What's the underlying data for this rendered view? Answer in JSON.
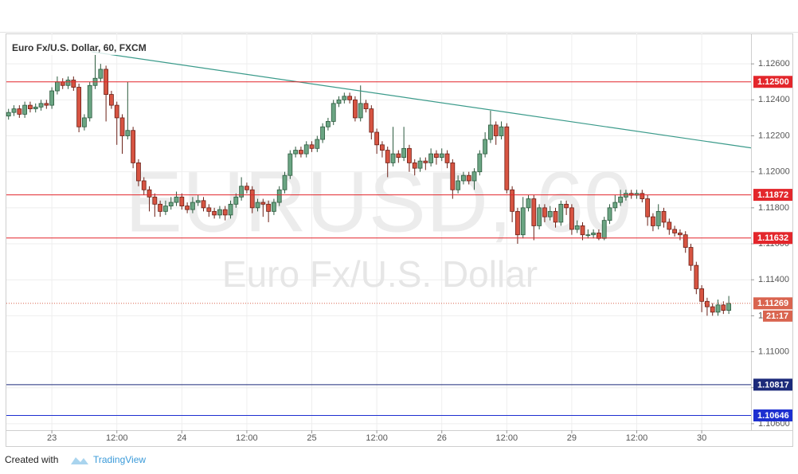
{
  "chart_data": {
    "type": "candlestick",
    "title": "Euro Fx/U.S. Dollar, 60, FXCM",
    "watermark": "EURUSD, 60",
    "watermark_subtitle": "Euro Fx/U.S. Dollar",
    "up_color": "#6ba583",
    "down_color": "#d75442",
    "grid": true,
    "xlim": [
      -0.4,
      137.1
    ],
    "ylim": [
      1.10564,
      1.12769
    ],
    "xticks": [
      {
        "value": 8,
        "label": "23"
      },
      {
        "value": 20,
        "label": "12:00"
      },
      {
        "value": 32,
        "label": "24"
      },
      {
        "value": 44,
        "label": "12:00"
      },
      {
        "value": 56,
        "label": "25"
      },
      {
        "value": 68,
        "label": "12:00"
      },
      {
        "value": 80,
        "label": "26"
      },
      {
        "value": 92,
        "label": "12:00"
      },
      {
        "value": 104,
        "label": "29"
      },
      {
        "value": 116,
        "label": "12:00"
      },
      {
        "value": 128,
        "label": "30"
      }
    ],
    "yticks": [
      {
        "value": 1.106,
        "label": "1.10600"
      },
      {
        "value": 1.108,
        "label": "1.10800"
      },
      {
        "value": 1.11,
        "label": "1.11000"
      },
      {
        "value": 1.112,
        "label": "1.11200"
      },
      {
        "value": 1.114,
        "label": "1.11400"
      },
      {
        "value": 1.116,
        "label": "1.11600"
      },
      {
        "value": 1.118,
        "label": "1.11800"
      },
      {
        "value": 1.12,
        "label": "1.12000"
      },
      {
        "value": 1.122,
        "label": "1.12200"
      },
      {
        "value": 1.124,
        "label": "1.12400"
      },
      {
        "value": 1.126,
        "label": "1.12600"
      }
    ],
    "levels": [
      {
        "value": 1.125,
        "label": "1.12500",
        "color": "#e3262b"
      },
      {
        "value": 1.11872,
        "label": "1.11872",
        "color": "#e3262b"
      },
      {
        "value": 1.11632,
        "label": "1.11632",
        "color": "#e3262b"
      },
      {
        "value": 1.10817,
        "label": "1.10817",
        "color": "#1c2a7a"
      },
      {
        "value": 1.10646,
        "label": "1.10646",
        "color": "#1d2fd0"
      }
    ],
    "last_price": {
      "value": 1.11269,
      "label": "1.11269",
      "countdown": "21:17",
      "color": "#d9644f"
    },
    "trendline": {
      "x": [
        15.35,
        137.1
      ],
      "y": [
        1.12667,
        1.12133
      ],
      "color": "#3a9a8a"
    },
    "candles": [
      [
        1.1231,
        1.1235,
        1.1229,
        1.1233
      ],
      [
        1.1233,
        1.1237,
        1.1231,
        1.1235
      ],
      [
        1.1235,
        1.1237,
        1.123,
        1.1232
      ],
      [
        1.1232,
        1.1239,
        1.123,
        1.1237
      ],
      [
        1.1237,
        1.1239,
        1.1233,
        1.1235
      ],
      [
        1.1235,
        1.1238,
        1.1233,
        1.1236
      ],
      [
        1.1236,
        1.124,
        1.1234,
        1.1238
      ],
      [
        1.1238,
        1.124,
        1.1235,
        1.1237
      ],
      [
        1.1237,
        1.1247,
        1.1235,
        1.1245
      ],
      [
        1.1245,
        1.1253,
        1.1243,
        1.125
      ],
      [
        1.125,
        1.1252,
        1.1246,
        1.1248
      ],
      [
        1.1248,
        1.1253,
        1.1246,
        1.1251
      ],
      [
        1.1251,
        1.1253,
        1.1245,
        1.1247
      ],
      [
        1.1247,
        1.1249,
        1.1222,
        1.1225
      ],
      [
        1.1225,
        1.1232,
        1.1223,
        1.123
      ],
      [
        1.123,
        1.125,
        1.1228,
        1.1248
      ],
      [
        1.1248,
        1.1265,
        1.1246,
        1.1252
      ],
      [
        1.1252,
        1.126,
        1.125,
        1.1257
      ],
      [
        1.1257,
        1.1259,
        1.1228,
        1.1243
      ],
      [
        1.1243,
        1.1245,
        1.1235,
        1.1237
      ],
      [
        1.1237,
        1.1239,
        1.1215,
        1.123
      ],
      [
        1.123,
        1.1232,
        1.121,
        1.122
      ],
      [
        1.122,
        1.125,
        1.1218,
        1.1223
      ],
      [
        1.1223,
        1.1225,
        1.1202,
        1.1205
      ],
      [
        1.1205,
        1.1207,
        1.1192,
        1.1195
      ],
      [
        1.1195,
        1.1197,
        1.1187,
        1.119
      ],
      [
        1.119,
        1.1192,
        1.1178,
        1.1186
      ],
      [
        1.1186,
        1.1188,
        1.1175,
        1.1182
      ],
      [
        1.1182,
        1.1184,
        1.1175,
        1.1178
      ],
      [
        1.1178,
        1.1184,
        1.1176,
        1.1181
      ],
      [
        1.1181,
        1.1186,
        1.1179,
        1.1183
      ],
      [
        1.1183,
        1.1189,
        1.1181,
        1.1186
      ],
      [
        1.1186,
        1.1188,
        1.1179,
        1.1181
      ],
      [
        1.1181,
        1.1183,
        1.1177,
        1.1179
      ],
      [
        1.1179,
        1.1186,
        1.1177,
        1.1183
      ],
      [
        1.1183,
        1.1187,
        1.1181,
        1.1184
      ],
      [
        1.1184,
        1.1186,
        1.1178,
        1.118
      ],
      [
        1.118,
        1.1182,
        1.1175,
        1.1178
      ],
      [
        1.1178,
        1.118,
        1.1174,
        1.1176
      ],
      [
        1.1176,
        1.1181,
        1.1174,
        1.1179
      ],
      [
        1.1179,
        1.1181,
        1.1173,
        1.1176
      ],
      [
        1.1176,
        1.1184,
        1.1174,
        1.1182
      ],
      [
        1.1182,
        1.1188,
        1.118,
        1.1186
      ],
      [
        1.1186,
        1.1197,
        1.1184,
        1.1192
      ],
      [
        1.1192,
        1.1194,
        1.1188,
        1.119
      ],
      [
        1.119,
        1.1192,
        1.1177,
        1.118
      ],
      [
        1.118,
        1.1185,
        1.1178,
        1.1183
      ],
      [
        1.1183,
        1.1185,
        1.1175,
        1.1182
      ],
      [
        1.1182,
        1.1184,
        1.1172,
        1.1178
      ],
      [
        1.1178,
        1.1185,
        1.1176,
        1.1183
      ],
      [
        1.1183,
        1.1192,
        1.1181,
        1.119
      ],
      [
        1.119,
        1.12,
        1.1188,
        1.1198
      ],
      [
        1.1198,
        1.1212,
        1.1196,
        1.121
      ],
      [
        1.121,
        1.1214,
        1.1208,
        1.1212
      ],
      [
        1.1212,
        1.1214,
        1.1208,
        1.121
      ],
      [
        1.121,
        1.1217,
        1.1208,
        1.1215
      ],
      [
        1.1215,
        1.1217,
        1.1211,
        1.1213
      ],
      [
        1.1213,
        1.122,
        1.1211,
        1.1218
      ],
      [
        1.1218,
        1.1227,
        1.1216,
        1.1225
      ],
      [
        1.1225,
        1.123,
        1.1223,
        1.1228
      ],
      [
        1.1228,
        1.124,
        1.1226,
        1.1238
      ],
      [
        1.1238,
        1.1242,
        1.1236,
        1.124
      ],
      [
        1.124,
        1.1244,
        1.1238,
        1.1242
      ],
      [
        1.1242,
        1.1244,
        1.1238,
        1.124
      ],
      [
        1.124,
        1.1242,
        1.1228,
        1.123
      ],
      [
        1.123,
        1.1248,
        1.1228,
        1.1238
      ],
      [
        1.1238,
        1.124,
        1.1233,
        1.1235
      ],
      [
        1.1235,
        1.1237,
        1.1218,
        1.1222
      ],
      [
        1.1222,
        1.1224,
        1.121,
        1.1215
      ],
      [
        1.1215,
        1.1217,
        1.1208,
        1.1212
      ],
      [
        1.1212,
        1.1214,
        1.1197,
        1.1205
      ],
      [
        1.1205,
        1.1225,
        1.1203,
        1.121
      ],
      [
        1.121,
        1.1212,
        1.1205,
        1.1208
      ],
      [
        1.1208,
        1.1225,
        1.1206,
        1.1213
      ],
      [
        1.1213,
        1.1215,
        1.12,
        1.1205
      ],
      [
        1.1205,
        1.1207,
        1.1198,
        1.1202
      ],
      [
        1.1202,
        1.1208,
        1.12,
        1.1206
      ],
      [
        1.1206,
        1.1208,
        1.1201,
        1.1205
      ],
      [
        1.1205,
        1.1213,
        1.1203,
        1.121
      ],
      [
        1.121,
        1.1212,
        1.1204,
        1.1208
      ],
      [
        1.1208,
        1.1213,
        1.1206,
        1.121
      ],
      [
        1.121,
        1.1212,
        1.1202,
        1.1205
      ],
      [
        1.1205,
        1.1207,
        1.1185,
        1.119
      ],
      [
        1.119,
        1.1198,
        1.1188,
        1.1195
      ],
      [
        1.1195,
        1.12,
        1.1193,
        1.1198
      ],
      [
        1.1198,
        1.12,
        1.1193,
        1.1195
      ],
      [
        1.1195,
        1.1202,
        1.119,
        1.12
      ],
      [
        1.12,
        1.1212,
        1.1198,
        1.121
      ],
      [
        1.121,
        1.1222,
        1.1208,
        1.1218
      ],
      [
        1.1218,
        1.1234,
        1.1216,
        1.1226
      ],
      [
        1.1226,
        1.1228,
        1.1215,
        1.122
      ],
      [
        1.122,
        1.1228,
        1.1218,
        1.1225
      ],
      [
        1.1225,
        1.1227,
        1.1188,
        1.119
      ],
      [
        1.119,
        1.1192,
        1.1172,
        1.1178
      ],
      [
        1.1178,
        1.118,
        1.116,
        1.1165
      ],
      [
        1.1165,
        1.1186,
        1.1163,
        1.118
      ],
      [
        1.118,
        1.1187,
        1.1178,
        1.1185
      ],
      [
        1.1185,
        1.1187,
        1.1162,
        1.117
      ],
      [
        1.117,
        1.1182,
        1.1168,
        1.118
      ],
      [
        1.118,
        1.1182,
        1.1172,
        1.1175
      ],
      [
        1.1175,
        1.1181,
        1.1173,
        1.1178
      ],
      [
        1.1178,
        1.118,
        1.1169,
        1.1172
      ],
      [
        1.1172,
        1.1184,
        1.117,
        1.1182
      ],
      [
        1.1182,
        1.1184,
        1.1176,
        1.118
      ],
      [
        1.118,
        1.1182,
        1.1165,
        1.1168
      ],
      [
        1.1168,
        1.1173,
        1.1166,
        1.117
      ],
      [
        1.117,
        1.1172,
        1.1162,
        1.1165
      ],
      [
        1.1165,
        1.1168,
        1.1163,
        1.1165
      ],
      [
        1.1165,
        1.1168,
        1.1163,
        1.1166
      ],
      [
        1.1166,
        1.1168,
        1.1162,
        1.1163
      ],
      [
        1.1163,
        1.1175,
        1.1162,
        1.1173
      ],
      [
        1.1173,
        1.1182,
        1.1171,
        1.118
      ],
      [
        1.118,
        1.1187,
        1.1178,
        1.1183
      ],
      [
        1.1183,
        1.119,
        1.1181,
        1.1186
      ],
      [
        1.1186,
        1.119,
        1.1184,
        1.1188
      ],
      [
        1.1188,
        1.119,
        1.1185,
        1.1187
      ],
      [
        1.1187,
        1.119,
        1.1185,
        1.1188
      ],
      [
        1.1188,
        1.119,
        1.1183,
        1.1185
      ],
      [
        1.1185,
        1.1187,
        1.117,
        1.1175
      ],
      [
        1.1175,
        1.1177,
        1.1167,
        1.117
      ],
      [
        1.117,
        1.1182,
        1.1168,
        1.1178
      ],
      [
        1.1178,
        1.118,
        1.1169,
        1.1172
      ],
      [
        1.1172,
        1.1174,
        1.1165,
        1.1168
      ],
      [
        1.1168,
        1.117,
        1.1164,
        1.1166
      ],
      [
        1.1166,
        1.1168,
        1.1162,
        1.1165
      ],
      [
        1.1165,
        1.1167,
        1.1155,
        1.1158
      ],
      [
        1.1158,
        1.116,
        1.1145,
        1.1148
      ],
      [
        1.1148,
        1.115,
        1.1132,
        1.1135
      ],
      [
        1.1135,
        1.1137,
        1.1122,
        1.1128
      ],
      [
        1.1128,
        1.113,
        1.112,
        1.1125
      ],
      [
        1.1125,
        1.1127,
        1.112,
        1.1122
      ],
      [
        1.1122,
        1.1129,
        1.112,
        1.1126
      ],
      [
        1.1126,
        1.1128,
        1.1121,
        1.1123
      ],
      [
        1.1123,
        1.1131,
        1.1121,
        1.11269
      ]
    ]
  },
  "footer": {
    "text": "Created with",
    "brand": "TradingView"
  }
}
